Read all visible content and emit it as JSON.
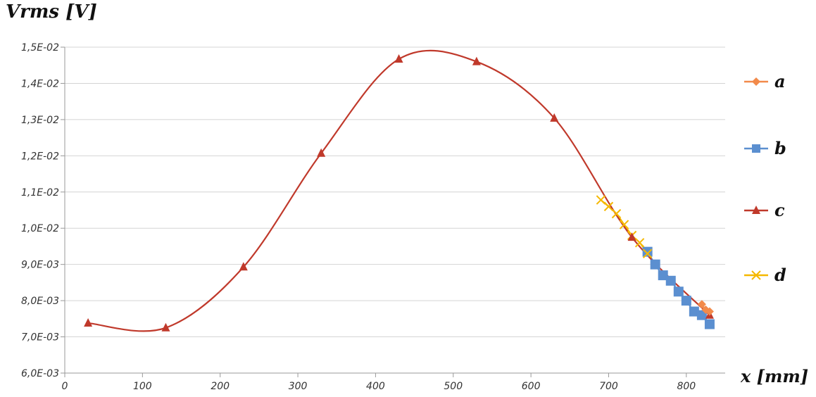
{
  "chart_data": {
    "type": "line",
    "ylabel": "Vrms [V]",
    "xlabel": "x [mm]",
    "xlim": [
      0,
      850
    ],
    "ylim": [
      0.006,
      0.015
    ],
    "xticks": [
      0,
      100,
      200,
      300,
      400,
      500,
      600,
      700,
      800
    ],
    "xtick_labels": [
      "0",
      "100",
      "200",
      "300",
      "400",
      "500",
      "600",
      "700",
      "800"
    ],
    "yticks": [
      0.006,
      0.007,
      0.008,
      0.009,
      0.01,
      0.011,
      0.012,
      0.013,
      0.014,
      0.015
    ],
    "ytick_labels": [
      "6,0E-03",
      "7,0E-03",
      "8,0E-03",
      "9,0E-03",
      "1,0E-02",
      "1,1E-02",
      "1,2E-02",
      "1,3E-02",
      "1,4E-02",
      "1,5E-02"
    ],
    "grid": true,
    "legend_position": "right",
    "series": [
      {
        "name": "a",
        "color": "#f28a4a",
        "marker": "diamond",
        "x": [
          820,
          825,
          830
        ],
        "y": [
          0.0079,
          0.00775,
          0.0077
        ]
      },
      {
        "name": "b",
        "color": "#5b8fd0",
        "marker": "square",
        "x": [
          750,
          760,
          770,
          780,
          790,
          800,
          810,
          820,
          830
        ],
        "y": [
          0.00935,
          0.009,
          0.0087,
          0.00855,
          0.00825,
          0.008,
          0.0077,
          0.0076,
          0.00735
        ]
      },
      {
        "name": "c",
        "color": "#c0392b",
        "marker": "triangle",
        "x": [
          30,
          130,
          230,
          330,
          430,
          530,
          630,
          730,
          830
        ],
        "y": [
          0.00738,
          0.00725,
          0.00893,
          0.01207,
          0.01467,
          0.0146,
          0.01304,
          0.00975,
          0.0076
        ]
      },
      {
        "name": "d",
        "color": "#f5b800",
        "marker": "x",
        "x": [
          690,
          700,
          710,
          720,
          730,
          740,
          750
        ],
        "y": [
          0.01078,
          0.0106,
          0.0104,
          0.0101,
          0.0098,
          0.0096,
          0.0093
        ]
      }
    ]
  }
}
